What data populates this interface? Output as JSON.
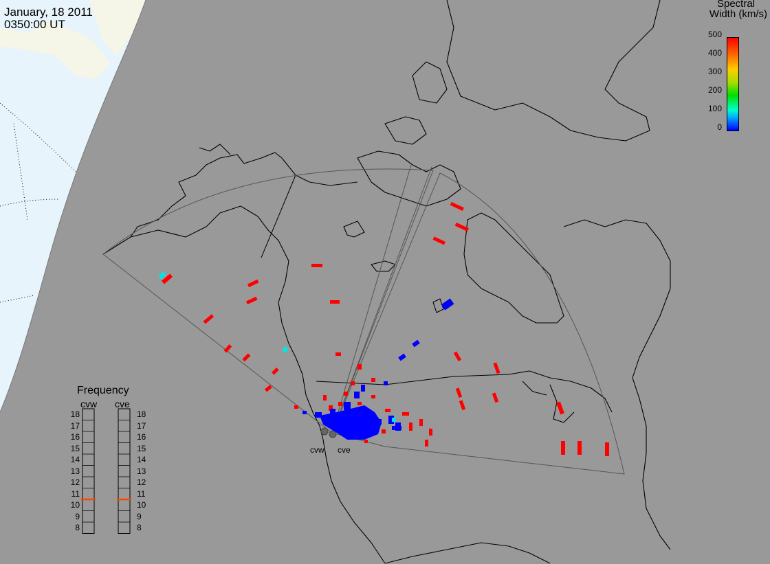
{
  "header": {
    "date": "January, 18 2011",
    "time": "0350:00 UT"
  },
  "colorbar": {
    "title_line1": "Spectral",
    "title_line2": "Width (km/s)",
    "ticks": [
      "500",
      "400",
      "300",
      "200",
      "100",
      "0"
    ],
    "range": [
      0,
      500
    ],
    "colors": [
      "#0000ff",
      "#00aaff",
      "#00ffcc",
      "#00dd00",
      "#aadd00",
      "#ffcc00",
      "#ff6600",
      "#ff0000"
    ]
  },
  "frequency_panel": {
    "title": "Frequency",
    "radars": [
      {
        "name": "cvw",
        "freq_mhz": 10.5
      },
      {
        "name": "cve",
        "freq_mhz": 10.5
      }
    ],
    "ticks": [
      "18",
      "17",
      "16",
      "15",
      "14",
      "13",
      "12",
      "11",
      "10",
      "9",
      "8"
    ]
  },
  "radars": {
    "west_label": "cvw",
    "east_label": "cve"
  },
  "colors": {
    "ocean_day": "#e8f4fb",
    "land_day": "#f5f5e8",
    "night": "#999999",
    "coast": "#000000",
    "high_width": "#ff0000",
    "low_width": "#0000ff",
    "mid_width": "#00e6e6",
    "freq_marker": "#ff4400"
  }
}
